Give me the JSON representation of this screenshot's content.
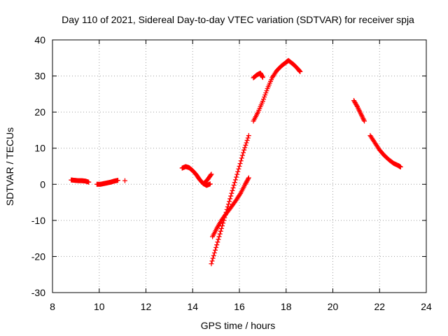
{
  "chart_data": {
    "type": "scatter",
    "title": "Day 110 of 2021, Sidereal Day-to-day VTEC variation (SDTVAR) for receiver spja",
    "xlabel": "GPS time / hours",
    "ylabel": "SDTVAR / TECUs",
    "xlim": [
      8,
      24
    ],
    "ylim": [
      -30,
      40
    ],
    "xticks": [
      8,
      10,
      12,
      14,
      16,
      18,
      20,
      22,
      24
    ],
    "yticks": [
      -30,
      -20,
      -10,
      0,
      10,
      20,
      30,
      40
    ],
    "grid": true,
    "legend": "none",
    "marker": "plus",
    "color": "#ff0000",
    "segments": [
      {
        "x": [
          8.8,
          8.95,
          9.1,
          9.25,
          9.4,
          9.55
        ],
        "y": [
          1.2,
          1.1,
          1.0,
          1.0,
          0.9,
          0.6
        ]
      },
      {
        "x": [
          9.9,
          10.05,
          10.2,
          10.35,
          10.5,
          10.65,
          10.8
        ],
        "y": [
          0.0,
          0.0,
          0.2,
          0.4,
          0.6,
          0.9,
          1.1
        ]
      },
      {
        "x": [
          11.1
        ],
        "y": [
          1.0
        ]
      },
      {
        "x": [
          13.55,
          13.7,
          13.85,
          14.0,
          14.15,
          14.3,
          14.45,
          14.6,
          14.75
        ],
        "y": [
          4.5,
          4.9,
          4.6,
          3.8,
          2.7,
          1.3,
          0.2,
          -0.3,
          0.1
        ]
      },
      {
        "x": [
          14.5,
          14.65,
          14.8
        ],
        "y": [
          0.3,
          1.4,
          2.8
        ]
      },
      {
        "x": [
          14.8,
          15.0,
          15.2,
          15.4,
          15.6,
          15.8,
          16.0,
          16.2,
          16.4
        ],
        "y": [
          -22.0,
          -17.5,
          -13.0,
          -8.5,
          -4.0,
          0.5,
          5.0,
          9.5,
          13.5
        ]
      },
      {
        "x": [
          14.85,
          15.05,
          15.25,
          15.45,
          15.65,
          15.85,
          16.05,
          16.25,
          16.4
        ],
        "y": [
          -14.5,
          -12.0,
          -9.8,
          -8.0,
          -6.3,
          -4.5,
          -2.5,
          0.0,
          1.8
        ]
      },
      {
        "x": [
          16.6,
          16.75,
          16.9,
          17.0
        ],
        "y": [
          29.5,
          30.3,
          30.8,
          29.6
        ]
      },
      {
        "x": [
          16.6,
          16.8,
          17.0,
          17.2,
          17.4,
          17.6,
          17.8,
          18.0,
          18.1,
          18.3,
          18.5,
          18.6
        ],
        "y": [
          17.5,
          20.0,
          23.0,
          26.5,
          29.5,
          31.5,
          32.8,
          33.8,
          34.3,
          33.3,
          32.0,
          31.2
        ]
      },
      {
        "x": [
          20.9,
          21.05,
          21.2,
          21.35
        ],
        "y": [
          23.2,
          21.5,
          19.5,
          17.5
        ]
      },
      {
        "x": [
          21.6,
          21.8,
          22.0,
          22.2,
          22.4,
          22.6,
          22.8,
          22.9
        ],
        "y": [
          13.5,
          11.5,
          9.5,
          8.0,
          6.8,
          5.8,
          5.2,
          4.8
        ]
      }
    ]
  }
}
